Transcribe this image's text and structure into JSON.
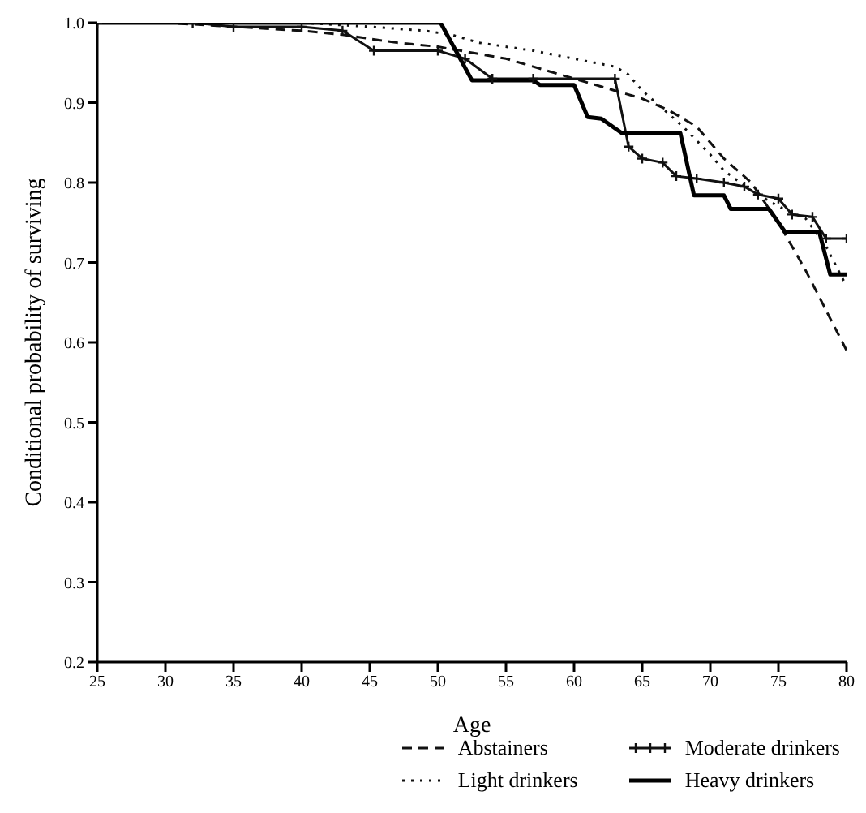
{
  "chart_data": {
    "type": "line",
    "xlabel": "Age",
    "ylabel": "Conditional probability of surviving",
    "xlim": [
      25,
      80
    ],
    "xticks": [
      25,
      30,
      35,
      40,
      45,
      50,
      55,
      60,
      65,
      70,
      75,
      80
    ],
    "ylim": [
      0.2,
      1.0
    ],
    "yticks": [
      {
        "value": 0.2,
        "label": "0.2"
      },
      {
        "value": 0.3,
        "label": "0.3"
      },
      {
        "value": 0.4,
        "label": "0.4"
      },
      {
        "value": 0.5,
        "label": "0.5"
      },
      {
        "value": 0.6,
        "label": "0.6"
      },
      {
        "value": 0.7,
        "label": "0.7"
      },
      {
        "value": 0.8,
        "label": "0.8"
      },
      {
        "value": 0.9,
        "label": "0.9"
      },
      {
        "value": 1.0,
        "label": "1.0"
      }
    ],
    "grid": false,
    "legend": "bottom right",
    "series": [
      {
        "name": "Abstainers",
        "color": "#111111",
        "line_style": "dashed",
        "marker": "none",
        "x": [
          25,
          30,
          35,
          40,
          43,
          45,
          47,
          50,
          55,
          60,
          63,
          65,
          67,
          69,
          71,
          73,
          75,
          77,
          78.5,
          80
        ],
        "values": [
          1.0,
          1.0,
          0.995,
          0.99,
          0.985,
          0.98,
          0.975,
          0.97,
          0.955,
          0.93,
          0.915,
          0.905,
          0.89,
          0.87,
          0.83,
          0.8,
          0.75,
          0.69,
          0.64,
          0.59
        ]
      },
      {
        "name": "Light drinkers",
        "color": "#111111",
        "line_style": "dotted",
        "marker": "none",
        "x": [
          25,
          40,
          45,
          49,
          51,
          53,
          57,
          60,
          63,
          64,
          65,
          66,
          68,
          70,
          71,
          73,
          75,
          77,
          78.5,
          80
        ],
        "values": [
          1.0,
          1.0,
          0.995,
          0.99,
          0.985,
          0.975,
          0.965,
          0.955,
          0.945,
          0.935,
          0.915,
          0.9,
          0.87,
          0.835,
          0.815,
          0.79,
          0.77,
          0.755,
          0.72,
          0.67
        ]
      },
      {
        "name": "Moderate drinkers",
        "color": "#111111",
        "line_style": "solid",
        "marker": "cross",
        "x": [
          25,
          32,
          35,
          40,
          43,
          45.3,
          50,
          52,
          54,
          57,
          63,
          64,
          65,
          66.5,
          67.5,
          69,
          71,
          72.5,
          73.5,
          75,
          76,
          77.5,
          78.5,
          80
        ],
        "values": [
          1.0,
          1.0,
          0.995,
          0.995,
          0.99,
          0.965,
          0.965,
          0.955,
          0.93,
          0.93,
          0.93,
          0.845,
          0.83,
          0.825,
          0.808,
          0.805,
          0.8,
          0.795,
          0.785,
          0.78,
          0.76,
          0.757,
          0.73,
          0.73
        ]
      },
      {
        "name": "Heavy drinkers",
        "color": "#000000",
        "line_style": "solid",
        "marker": "none",
        "x": [
          25,
          50.2,
          52.5,
          57,
          57.5,
          60,
          61,
          62,
          63.5,
          67.8,
          68.8,
          71,
          71.5,
          74.3,
          75.5,
          78,
          78.8,
          80
        ],
        "values": [
          1.0,
          1.0,
          0.928,
          0.928,
          0.922,
          0.922,
          0.882,
          0.88,
          0.862,
          0.862,
          0.784,
          0.784,
          0.767,
          0.767,
          0.738,
          0.738,
          0.685,
          0.685
        ]
      }
    ]
  }
}
